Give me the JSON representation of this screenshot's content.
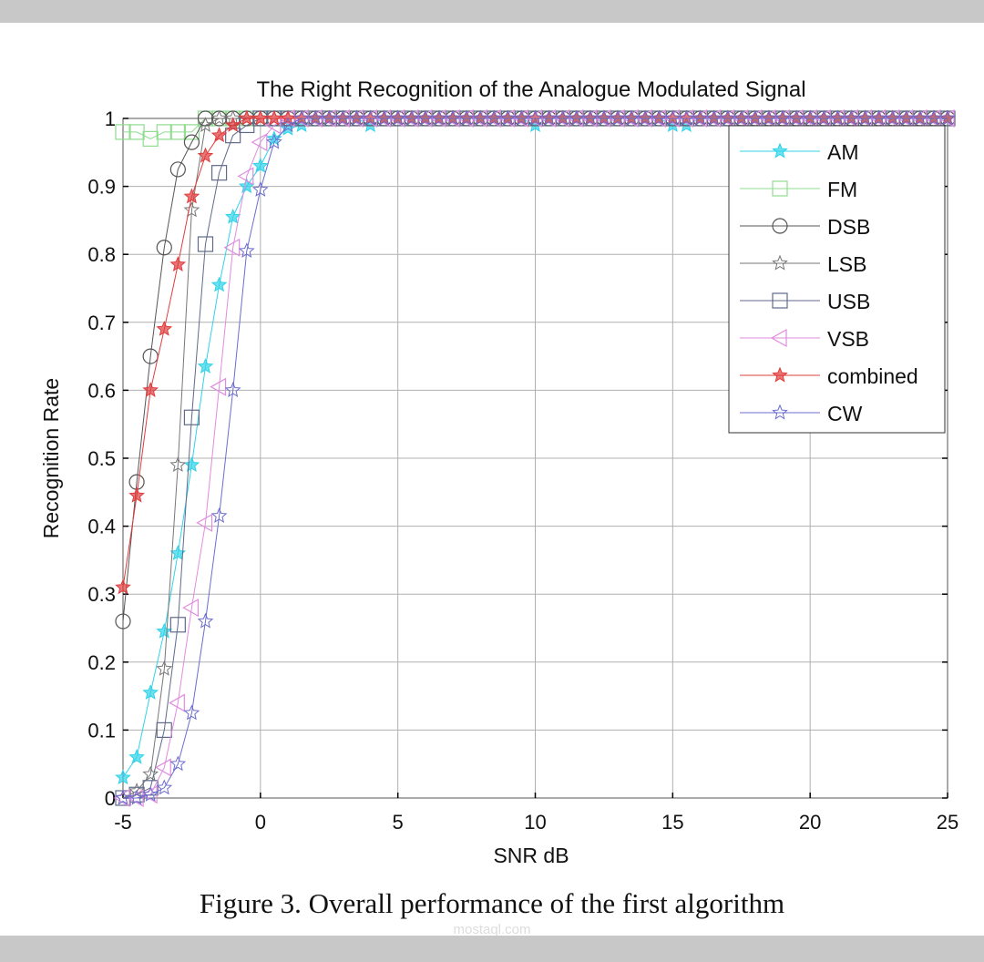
{
  "chart_data": {
    "type": "line",
    "title": "The Right Recognition of the Analogue Modulated Signal",
    "xlabel": "SNR dB",
    "ylabel": "Recognition Rate",
    "xlim": [
      -5,
      25
    ],
    "ylim": [
      0,
      1
    ],
    "xticks": [
      "-5",
      "0",
      "5",
      "10",
      "15",
      "20",
      "25"
    ],
    "yticks": [
      "0",
      "0.1",
      "0.2",
      "0.3",
      "0.4",
      "0.5",
      "0.6",
      "0.7",
      "0.8",
      "0.9",
      "1"
    ],
    "grid": true,
    "legend_position": "top-right",
    "x": [
      -5,
      -4.5,
      -4,
      -3.5,
      -3,
      -2.5,
      -2,
      -1.5,
      -1,
      -0.5,
      0,
      0.5,
      1,
      1.5,
      2,
      2.5,
      3,
      3.5,
      4,
      4.5,
      5,
      5.5,
      6,
      6.5,
      7,
      7.5,
      8,
      8.5,
      9,
      9.5,
      10,
      10.5,
      11,
      11.5,
      12,
      12.5,
      13,
      13.5,
      14,
      14.5,
      15,
      15.5,
      16,
      16.5,
      17,
      17.5,
      18,
      18.5,
      19,
      19.5,
      20,
      20.5,
      21,
      21.5,
      22,
      22.5,
      23,
      23.5,
      24,
      24.5,
      25
    ],
    "series": [
      {
        "name": "AM",
        "color": "#2fd3e8",
        "marker": "star-filled",
        "values": [
          0.03,
          0.06,
          0.155,
          0.245,
          0.36,
          0.49,
          0.635,
          0.755,
          0.855,
          0.9,
          0.93,
          0.97,
          0.985,
          0.99,
          1,
          1,
          1,
          1,
          0.99,
          1,
          1,
          1,
          1,
          1,
          1,
          1,
          1,
          1,
          1,
          1,
          0.99,
          1,
          1,
          1,
          1,
          1,
          1,
          1,
          1,
          1,
          0.99,
          0.99,
          1,
          1,
          1,
          1,
          1,
          1,
          1,
          1,
          1,
          1,
          1,
          1,
          1,
          1,
          1,
          1,
          1,
          1,
          1
        ]
      },
      {
        "name": "FM",
        "color": "#8fdc8f",
        "marker": "square",
        "values": [
          0.98,
          0.98,
          0.97,
          0.98,
          0.98,
          0.98,
          1,
          1,
          1,
          1,
          1,
          1,
          1,
          1,
          1,
          1,
          1,
          1,
          1,
          1,
          1,
          1,
          1,
          1,
          1,
          1,
          1,
          1,
          1,
          1,
          1,
          1,
          1,
          1,
          1,
          1,
          1,
          1,
          1,
          1,
          1,
          1,
          1,
          1,
          1,
          1,
          1,
          1,
          1,
          1,
          1,
          1,
          1,
          1,
          1,
          1,
          1,
          1,
          1,
          1,
          1
        ]
      },
      {
        "name": "DSB",
        "color": "#555555",
        "marker": "circle",
        "values": [
          0.26,
          0.465,
          0.65,
          0.81,
          0.925,
          0.965,
          1,
          1,
          1,
          1,
          1,
          1,
          1,
          1,
          1,
          1,
          1,
          1,
          1,
          1,
          1,
          1,
          1,
          1,
          1,
          1,
          1,
          1,
          1,
          1,
          1,
          1,
          1,
          1,
          1,
          1,
          1,
          1,
          1,
          1,
          1,
          1,
          1,
          1,
          1,
          1,
          1,
          1,
          1,
          1,
          1,
          1,
          1,
          1,
          1,
          1,
          1,
          1,
          1,
          1,
          1
        ]
      },
      {
        "name": "LSB",
        "color": "#777777",
        "marker": "star",
        "values": [
          0,
          0.01,
          0.035,
          0.19,
          0.49,
          0.865,
          0.99,
          1,
          1,
          1,
          1,
          1,
          1,
          1,
          1,
          1,
          1,
          1,
          1,
          1,
          1,
          1,
          1,
          1,
          1,
          1,
          1,
          1,
          1,
          1,
          1,
          1,
          1,
          1,
          1,
          1,
          1,
          1,
          1,
          1,
          1,
          1,
          1,
          1,
          1,
          1,
          1,
          1,
          1,
          1,
          1,
          1,
          1,
          1,
          1,
          1,
          1,
          1,
          1,
          1,
          1
        ]
      },
      {
        "name": "USB",
        "color": "#606a8a",
        "marker": "square",
        "values": [
          0,
          0.005,
          0.015,
          0.1,
          0.255,
          0.56,
          0.815,
          0.92,
          0.975,
          0.99,
          1,
          1,
          1,
          1,
          1,
          1,
          1,
          1,
          1,
          1,
          1,
          1,
          1,
          1,
          1,
          1,
          1,
          1,
          1,
          1,
          1,
          1,
          1,
          1,
          1,
          1,
          1,
          1,
          1,
          1,
          1,
          1,
          1,
          1,
          1,
          1,
          1,
          1,
          1,
          1,
          1,
          1,
          1,
          1,
          1,
          1,
          1,
          1,
          1,
          1,
          1
        ]
      },
      {
        "name": "VSB",
        "color": "#e08ce0",
        "marker": "triangle-left",
        "values": [
          0,
          0,
          0.005,
          0.045,
          0.14,
          0.28,
          0.405,
          0.605,
          0.81,
          0.915,
          0.965,
          0.99,
          1,
          1,
          1,
          1,
          1,
          1,
          1,
          1,
          1,
          1,
          1,
          1,
          1,
          1,
          1,
          1,
          1,
          1,
          1,
          1,
          1,
          1,
          1,
          1,
          1,
          1,
          1,
          1,
          1,
          1,
          1,
          1,
          1,
          1,
          1,
          1,
          1,
          1,
          1,
          1,
          1,
          1,
          1,
          1,
          1,
          1,
          1,
          1,
          1
        ]
      },
      {
        "name": "combined",
        "color": "#e03c3c",
        "marker": "star-filled",
        "values": [
          0.31,
          0.445,
          0.6,
          0.69,
          0.785,
          0.885,
          0.945,
          0.975,
          0.99,
          1,
          1,
          1,
          1,
          1,
          1,
          1,
          1,
          1,
          1,
          1,
          1,
          1,
          1,
          1,
          1,
          1,
          1,
          1,
          1,
          1,
          1,
          1,
          1,
          1,
          1,
          1,
          1,
          1,
          1,
          1,
          1,
          1,
          1,
          1,
          1,
          1,
          1,
          1,
          1,
          1,
          1,
          1,
          1,
          1,
          1,
          1,
          1,
          1,
          1,
          1,
          1
        ]
      },
      {
        "name": "CW",
        "color": "#6c6cd0",
        "marker": "star",
        "values": [
          0,
          0,
          0.005,
          0.015,
          0.05,
          0.125,
          0.26,
          0.415,
          0.6,
          0.805,
          0.895,
          0.965,
          0.99,
          1,
          1,
          1,
          1,
          1,
          1,
          1,
          1,
          1,
          1,
          1,
          1,
          1,
          1,
          1,
          1,
          1,
          1,
          1,
          1,
          1,
          1,
          1,
          1,
          1,
          1,
          1,
          1,
          1,
          1,
          1,
          1,
          1,
          1,
          1,
          1,
          1,
          1,
          1,
          1,
          1,
          1,
          1,
          1,
          1,
          1,
          1,
          1
        ]
      }
    ]
  },
  "caption": "Figure 3.  Overall performance of the first algorithm",
  "watermark": "mostaql.com"
}
